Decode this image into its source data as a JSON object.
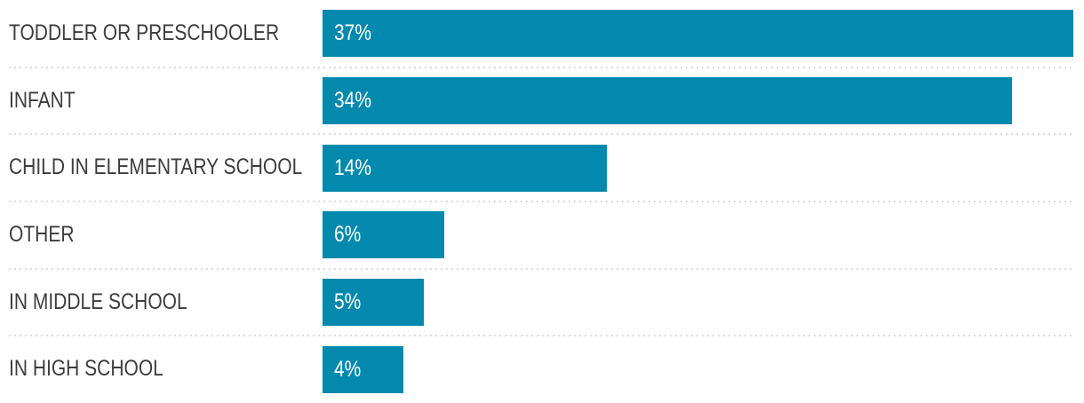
{
  "chart_data": {
    "type": "bar",
    "orientation": "horizontal",
    "title": "",
    "xlabel": "",
    "ylabel": "",
    "categories": [
      "TODDLER OR PRESCHOOLER",
      "INFANT",
      "CHILD IN ELEMENTARY SCHOOL",
      "OTHER",
      "IN MIDDLE SCHOOL",
      "IN HIGH SCHOOL"
    ],
    "values": [
      37,
      34,
      14,
      6,
      5,
      4
    ],
    "value_labels": [
      "37%",
      "34%",
      "14%",
      "6%",
      "5%",
      "4%"
    ],
    "value_suffix": "%",
    "xlim": [
      0,
      37
    ],
    "grid": false,
    "legend": false,
    "value_label_position": "inside-start",
    "colors": {
      "bar": "#0289ad",
      "category_label": "#3c3c3c",
      "value_label": "#ffffff",
      "separator": "#dcdcdc",
      "background": "#ffffff"
    }
  }
}
